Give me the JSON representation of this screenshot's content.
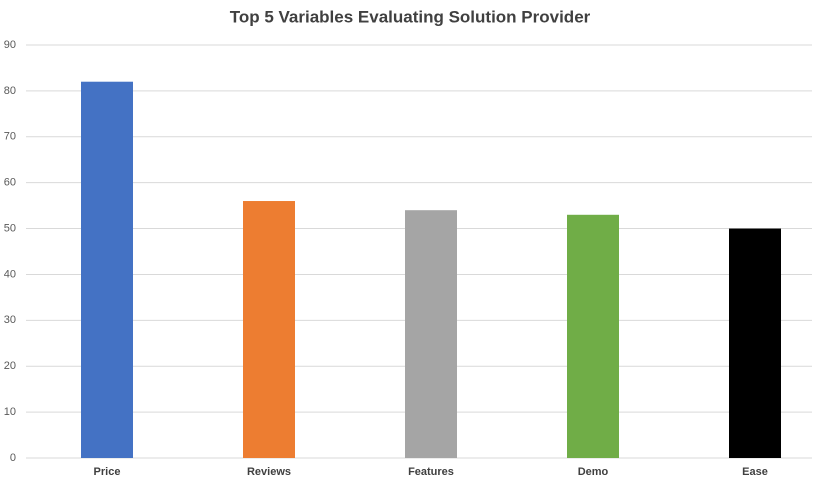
{
  "chart_data": {
    "type": "bar",
    "title": "Top 5 Variables Evaluating Solution Provider",
    "categories": [
      "Price",
      "Reviews",
      "Features",
      "Demo",
      "Ease"
    ],
    "values": [
      82,
      56,
      54,
      53,
      50
    ],
    "colors": [
      "#4472c4",
      "#ed7d31",
      "#a5a5a5",
      "#70ad47",
      "#000000"
    ],
    "ylim": [
      0,
      90
    ],
    "yticks": [
      0,
      10,
      20,
      30,
      40,
      50,
      60,
      70,
      80,
      90
    ],
    "grid": true
  }
}
